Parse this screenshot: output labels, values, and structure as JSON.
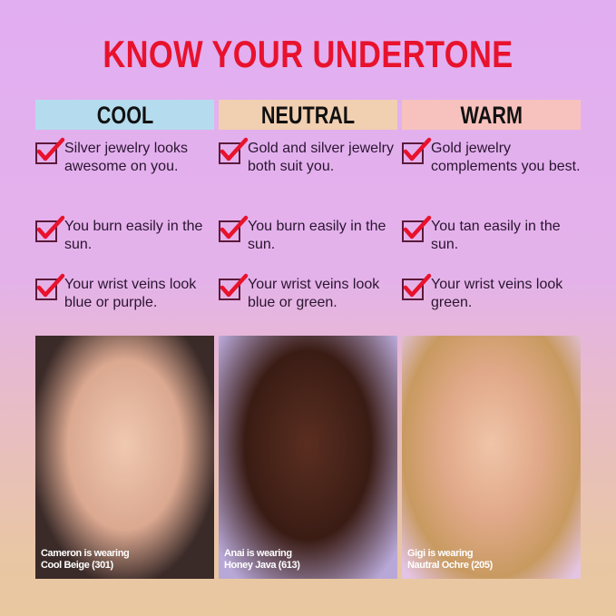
{
  "title": "KNOW YOUR UNDERTONE",
  "colors": {
    "accent": "#e8122d",
    "cool": "#b5dcee",
    "neutral": "#f1cfb1",
    "warm": "#f7c2bd"
  },
  "columns": [
    {
      "name": "COOL",
      "items": [
        "Silver jewelry looks awesome on you.",
        "You burn easily in the sun.",
        "Your wrist veins look blue or purple."
      ],
      "caption1": "Cameron is wearing",
      "caption2": "Cool Beige (301)"
    },
    {
      "name": "NEUTRAL",
      "items": [
        "Gold and silver jewelry both suit you.",
        "You burn easily in the sun.",
        "Your wrist veins look blue or green."
      ],
      "caption1": "Anai is wearing",
      "caption2": "Honey Java (613)"
    },
    {
      "name": "WARM",
      "items": [
        "Gold jewelry complements you best.",
        "You tan easily in the sun.",
        "Your wrist veins look green."
      ],
      "caption1": "Gigi is wearing",
      "caption2": "Nautral Ochre (205)"
    }
  ]
}
